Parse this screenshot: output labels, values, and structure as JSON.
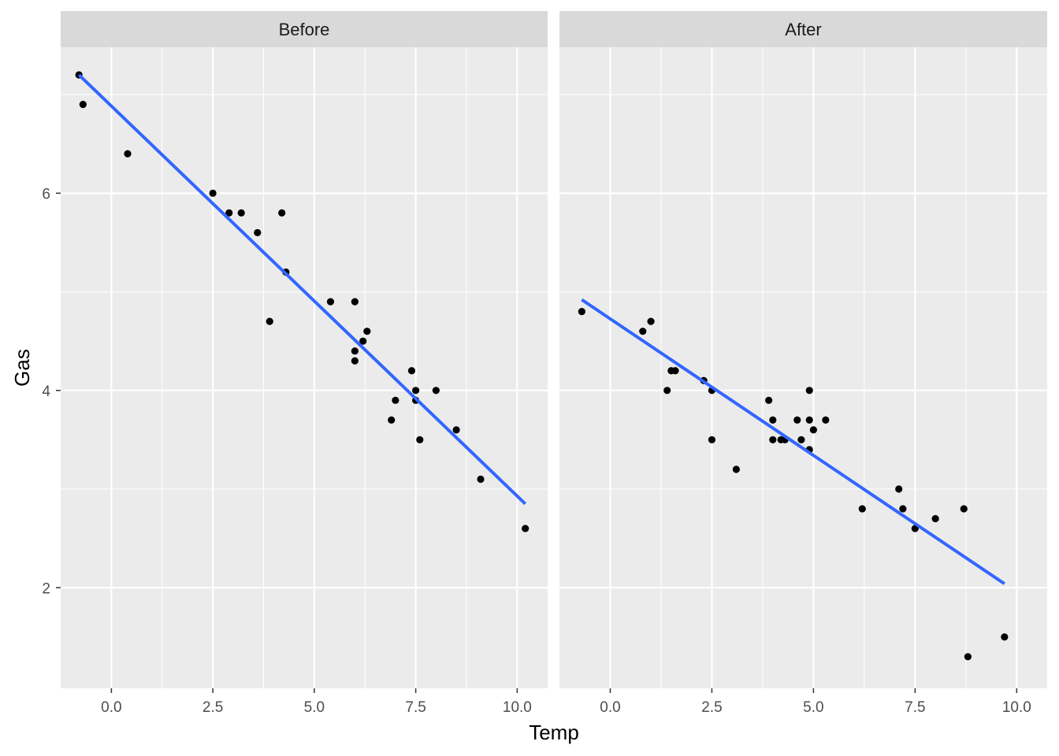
{
  "chart_data": {
    "type": "scatter",
    "xlabel": "Temp",
    "ylabel": "Gas",
    "xlim": [
      -1.25,
      10.75
    ],
    "ylim": [
      0.98,
      7.48
    ],
    "x_ticks": [
      0,
      2.5,
      5,
      7.5,
      10
    ],
    "x_tick_labels": [
      "0.0",
      "2.5",
      "5.0",
      "7.5",
      "10.0"
    ],
    "y_ticks": [
      2,
      4,
      6
    ],
    "y_tick_labels": [
      "2",
      "4",
      "6"
    ],
    "grid": true,
    "colors": {
      "panel_background": "#ebebeb",
      "strip_background": "#d9d9d9",
      "grid": "#ffffff",
      "points": "#000000",
      "fit_line": "#3366ff"
    },
    "panels": [
      {
        "label": "Before",
        "points": [
          {
            "x": -0.8,
            "y": 7.2
          },
          {
            "x": -0.7,
            "y": 6.9
          },
          {
            "x": 0.4,
            "y": 6.4
          },
          {
            "x": 2.5,
            "y": 6.0
          },
          {
            "x": 2.9,
            "y": 5.8
          },
          {
            "x": 3.2,
            "y": 5.8
          },
          {
            "x": 3.6,
            "y": 5.6
          },
          {
            "x": 3.9,
            "y": 4.7
          },
          {
            "x": 4.2,
            "y": 5.8
          },
          {
            "x": 4.3,
            "y": 5.2
          },
          {
            "x": 5.4,
            "y": 4.9
          },
          {
            "x": 6.0,
            "y": 4.9
          },
          {
            "x": 6.0,
            "y": 4.4
          },
          {
            "x": 6.0,
            "y": 4.3
          },
          {
            "x": 6.2,
            "y": 4.5
          },
          {
            "x": 6.3,
            "y": 4.6
          },
          {
            "x": 6.9,
            "y": 3.7
          },
          {
            "x": 7.0,
            "y": 3.9
          },
          {
            "x": 7.4,
            "y": 4.2
          },
          {
            "x": 7.5,
            "y": 4.0
          },
          {
            "x": 7.5,
            "y": 3.9
          },
          {
            "x": 7.6,
            "y": 3.5
          },
          {
            "x": 8.0,
            "y": 4.0
          },
          {
            "x": 8.5,
            "y": 3.6
          },
          {
            "x": 9.1,
            "y": 3.1
          },
          {
            "x": 10.2,
            "y": 2.6
          }
        ],
        "fit": {
          "x": [
            -0.8,
            10.2
          ],
          "y": [
            7.2,
            2.85
          ]
        }
      },
      {
        "label": "After",
        "points": [
          {
            "x": -0.7,
            "y": 4.8
          },
          {
            "x": 0.8,
            "y": 4.6
          },
          {
            "x": 1.0,
            "y": 4.7
          },
          {
            "x": 1.4,
            "y": 4.0
          },
          {
            "x": 1.5,
            "y": 4.2
          },
          {
            "x": 1.6,
            "y": 4.2
          },
          {
            "x": 2.3,
            "y": 4.1
          },
          {
            "x": 2.5,
            "y": 4.0
          },
          {
            "x": 2.5,
            "y": 3.5
          },
          {
            "x": 3.1,
            "y": 3.2
          },
          {
            "x": 3.9,
            "y": 3.9
          },
          {
            "x": 4.0,
            "y": 3.7
          },
          {
            "x": 4.0,
            "y": 3.5
          },
          {
            "x": 4.2,
            "y": 3.5
          },
          {
            "x": 4.3,
            "y": 3.5
          },
          {
            "x": 4.6,
            "y": 3.7
          },
          {
            "x": 4.7,
            "y": 3.5
          },
          {
            "x": 4.9,
            "y": 4.0
          },
          {
            "x": 4.9,
            "y": 3.7
          },
          {
            "x": 4.9,
            "y": 3.4
          },
          {
            "x": 5.0,
            "y": 3.6
          },
          {
            "x": 5.3,
            "y": 3.7
          },
          {
            "x": 6.2,
            "y": 2.8
          },
          {
            "x": 7.1,
            "y": 3.0
          },
          {
            "x": 7.2,
            "y": 2.8
          },
          {
            "x": 7.5,
            "y": 2.6
          },
          {
            "x": 8.0,
            "y": 2.7
          },
          {
            "x": 8.7,
            "y": 2.8
          },
          {
            "x": 8.8,
            "y": 1.3
          },
          {
            "x": 9.7,
            "y": 1.5
          }
        ],
        "fit": {
          "x": [
            -0.7,
            9.7
          ],
          "y": [
            4.92,
            2.04
          ]
        }
      }
    ]
  }
}
